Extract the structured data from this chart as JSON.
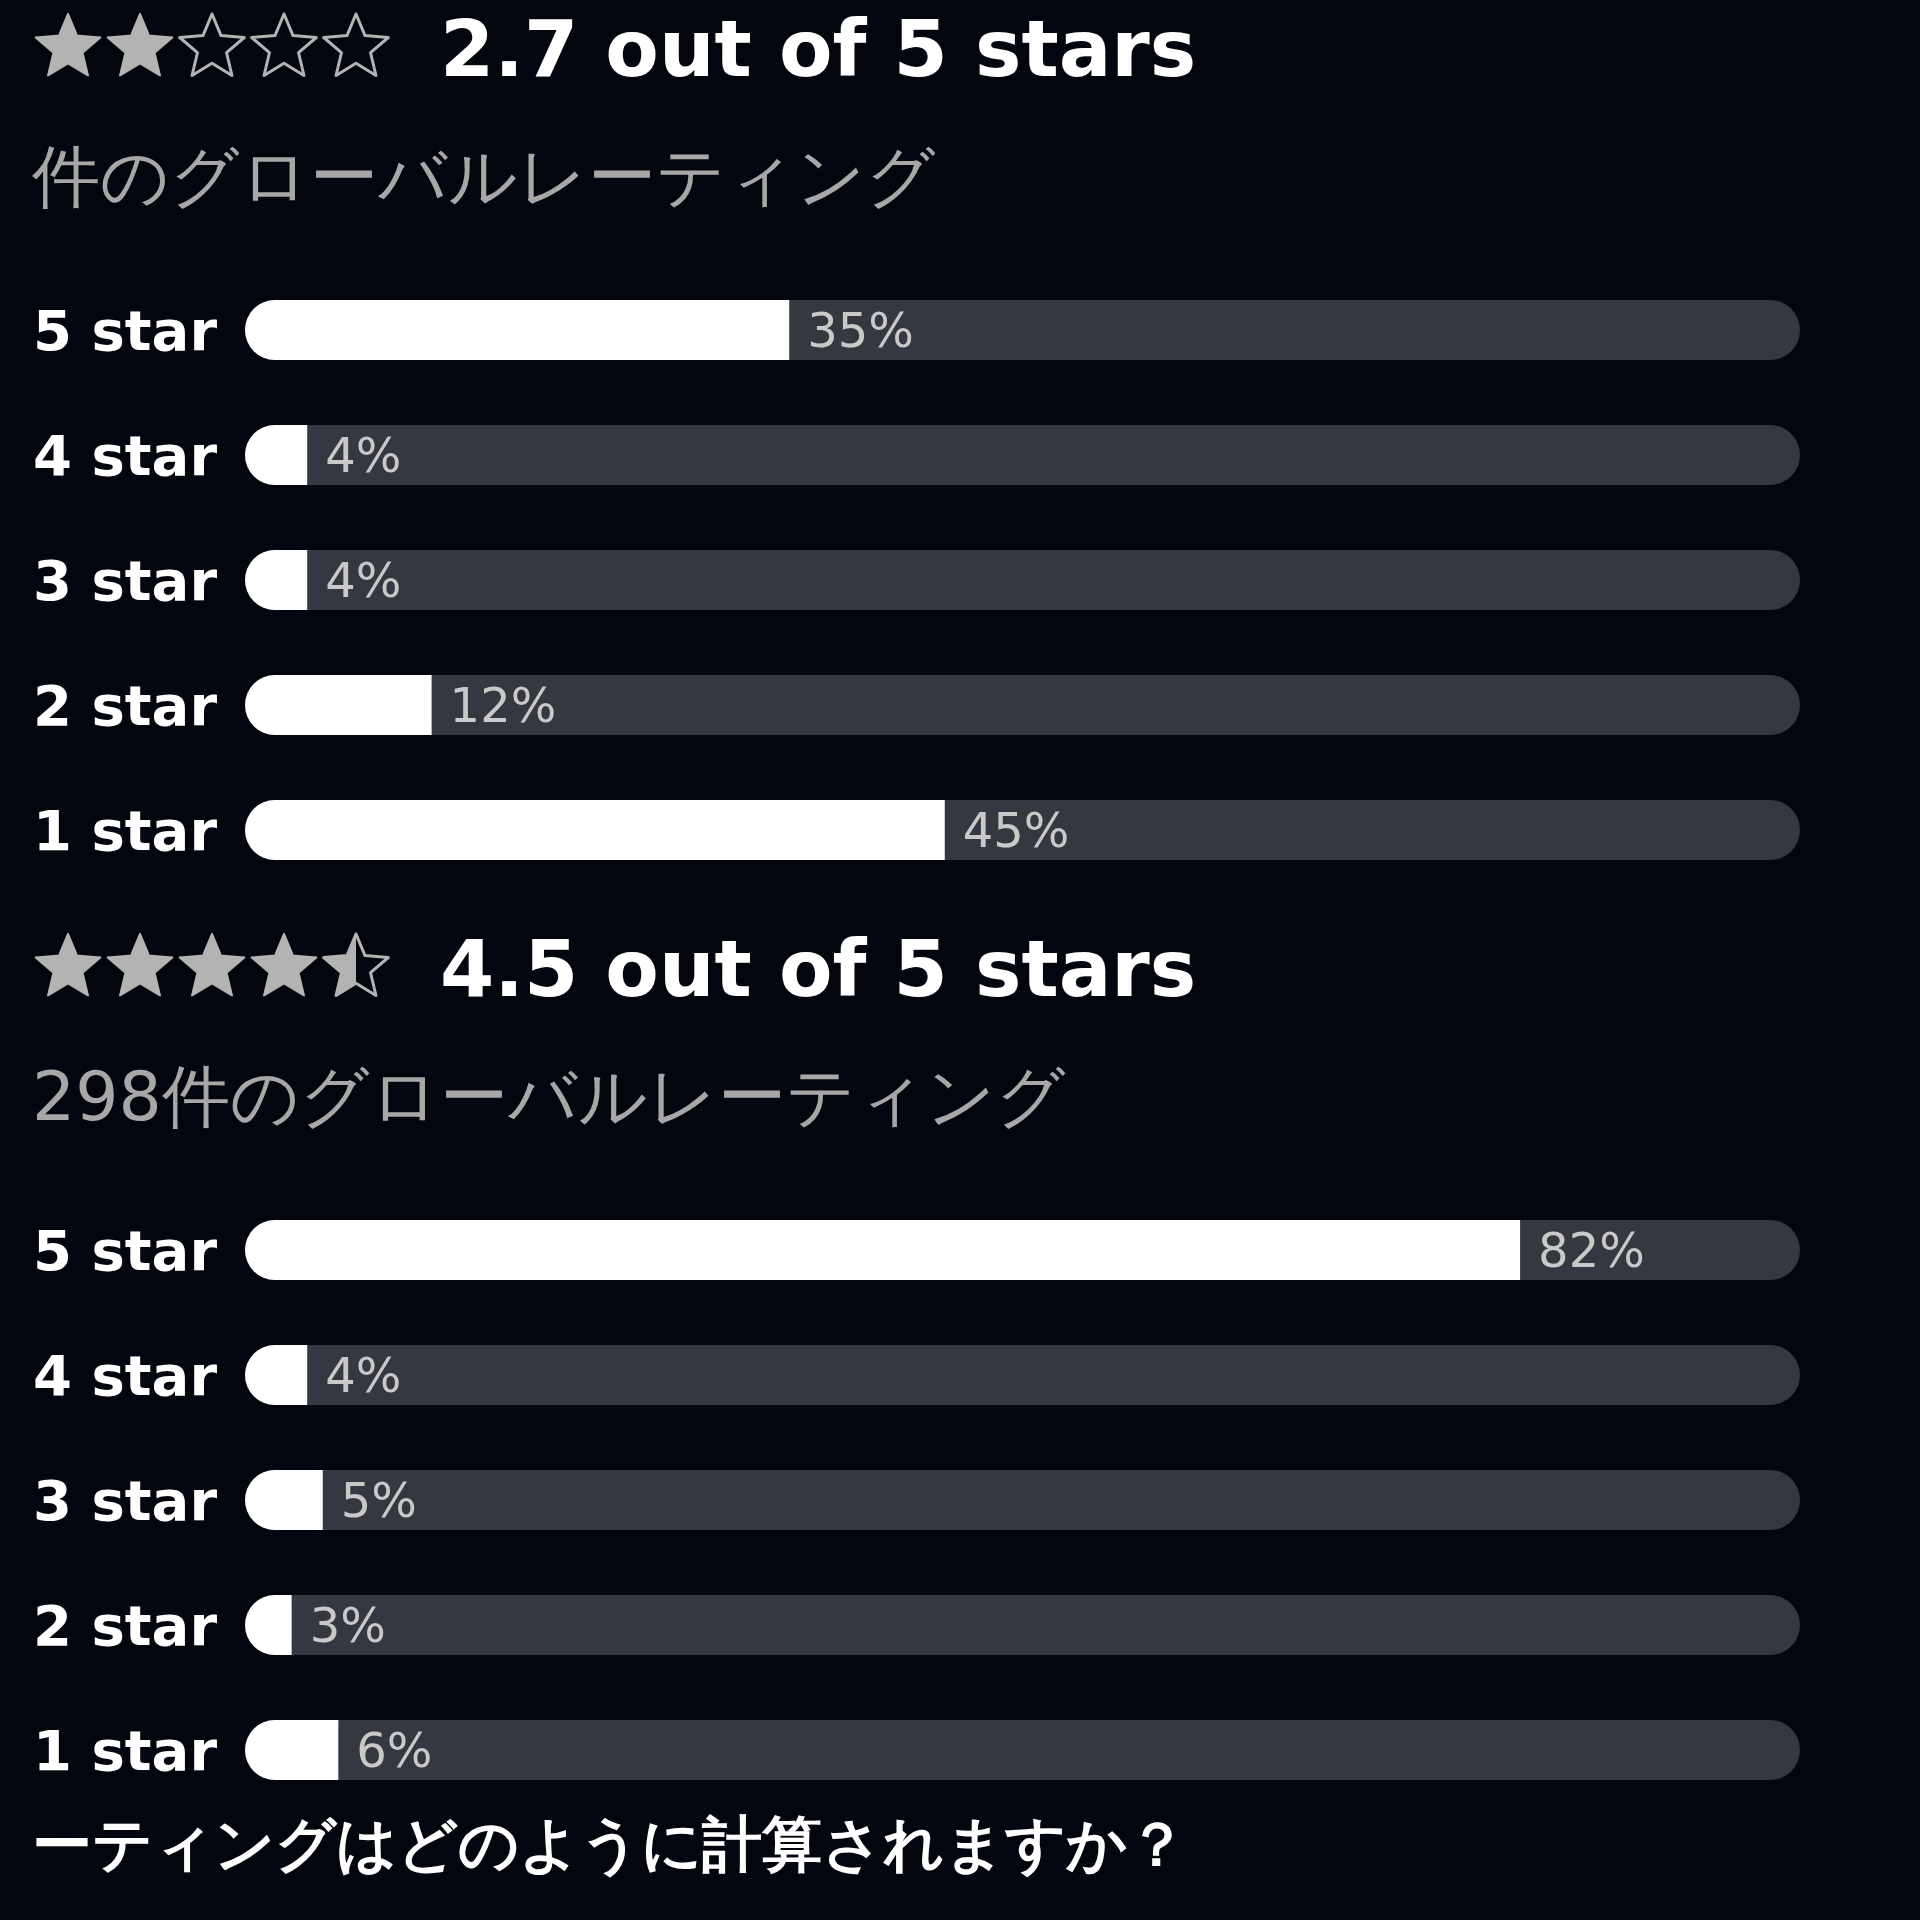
{
  "chart_data": [
    {
      "type": "bar",
      "orientation": "horizontal",
      "title": "2.7 out of 5 stars",
      "subtitle": "件のグローバルレーティング",
      "categories": [
        "5 star",
        "4 star",
        "3 star",
        "2 star",
        "1 star"
      ],
      "values": [
        35,
        4,
        4,
        12,
        45
      ],
      "value_labels": [
        "35%",
        "4%",
        "4%",
        "12%",
        "45%"
      ],
      "color": "#ffffff",
      "tick_labels": "y"
    },
    {
      "type": "bar",
      "orientation": "horizontal",
      "title": "4.5 out of 5 stars",
      "subtitle": "298件のグローバルレーティング",
      "categories": [
        "5 star",
        "4 star",
        "3 star",
        "2 star",
        "1 star"
      ],
      "values": [
        82,
        4,
        5,
        3,
        6
      ],
      "value_labels": [
        "82%",
        "4%",
        "5%",
        "3%",
        "6%"
      ],
      "color": "#ffffff",
      "tick_labels": "y",
      "annotations": [
        "ーティングはどのように計算されますか？"
      ]
    }
  ]
}
